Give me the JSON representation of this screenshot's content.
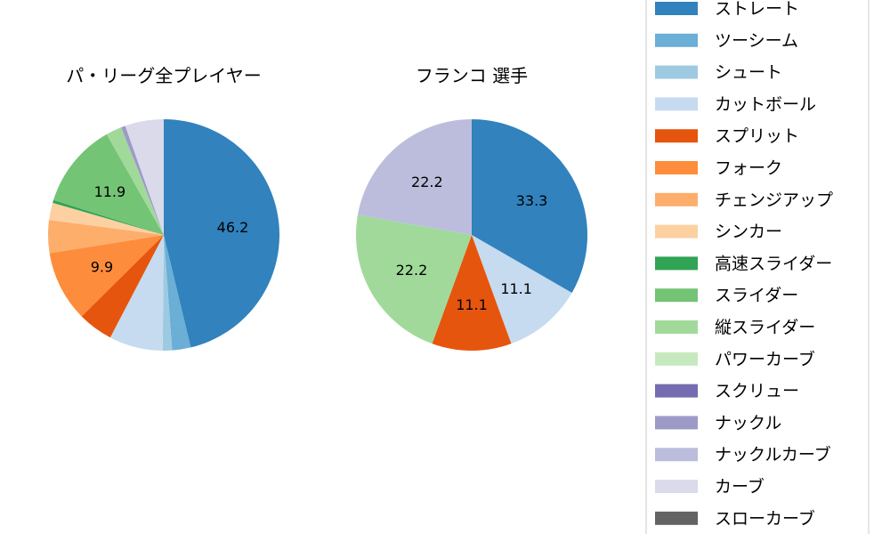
{
  "chart_data": [
    {
      "type": "pie",
      "title": "パ・リーグ全プレイヤー",
      "categories": [
        "ストレート",
        "ツーシーム",
        "シュート",
        "カットボール",
        "スプリット",
        "フォーク",
        "チェンジアップ",
        "シンカー",
        "高速スライダー",
        "スライダー",
        "縦スライダー",
        "パワーカーブ",
        "スクリュー",
        "ナックル",
        "ナックルカーブ",
        "カーブ",
        "スローカーブ"
      ],
      "values": [
        46.2,
        2.6,
        1.3,
        7.5,
        4.9,
        9.9,
        4.6,
        2.4,
        0.4,
        11.9,
        2.2,
        0,
        0,
        0.6,
        0,
        5.4,
        0
      ],
      "labels": [
        "46.2",
        "",
        "",
        "",
        "",
        "9.9",
        "",
        "",
        "",
        "11.9",
        "",
        "",
        "",
        "",
        "",
        "",
        ""
      ]
    },
    {
      "type": "pie",
      "title": "フランコ 選手",
      "categories": [
        "ストレート",
        "ツーシーム",
        "シュート",
        "カットボール",
        "スプリット",
        "フォーク",
        "チェンジアップ",
        "シンカー",
        "高速スライダー",
        "スライダー",
        "縦スライダー",
        "パワーカーブ",
        "スクリュー",
        "ナックル",
        "ナックルカーブ",
        "カーブ",
        "スローカーブ"
      ],
      "values": [
        33.3,
        0,
        0,
        11.1,
        11.1,
        0,
        0,
        0,
        0,
        0,
        22.2,
        0,
        0,
        0,
        22.2,
        0,
        0
      ],
      "labels": [
        "33.3",
        "",
        "",
        "11.1",
        "11.1",
        "",
        "",
        "",
        "",
        "",
        "22.2",
        "",
        "",
        "",
        "22.2",
        "",
        ""
      ]
    }
  ],
  "legend": {
    "items": [
      {
        "label": "ストレート",
        "color": "#3182bd"
      },
      {
        "label": "ツーシーム",
        "color": "#6baed6"
      },
      {
        "label": "シュート",
        "color": "#9ecae1"
      },
      {
        "label": "カットボール",
        "color": "#c6dbef"
      },
      {
        "label": "スプリット",
        "color": "#e6550d"
      },
      {
        "label": "フォーク",
        "color": "#fd8d3c"
      },
      {
        "label": "チェンジアップ",
        "color": "#fdae6b"
      },
      {
        "label": "シンカー",
        "color": "#fdd0a2"
      },
      {
        "label": "高速スライダー",
        "color": "#31a354"
      },
      {
        "label": "スライダー",
        "color": "#74c476"
      },
      {
        "label": "縦スライダー",
        "color": "#a1d99b"
      },
      {
        "label": "パワーカーブ",
        "color": "#c7e9c0"
      },
      {
        "label": "スクリュー",
        "color": "#756bb1"
      },
      {
        "label": "ナックル",
        "color": "#9e9ac8"
      },
      {
        "label": "ナックルカーブ",
        "color": "#bcbddc"
      },
      {
        "label": "カーブ",
        "color": "#dadaeb"
      },
      {
        "label": "スローカーブ",
        "color": "#636363"
      }
    ]
  }
}
